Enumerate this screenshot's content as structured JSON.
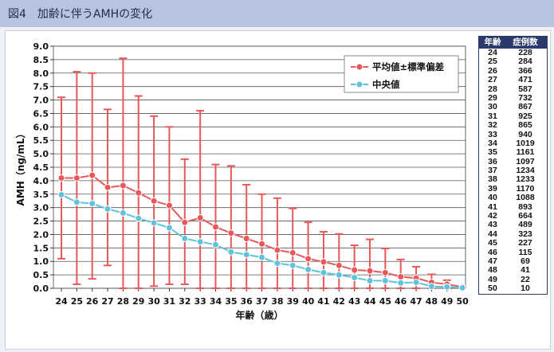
{
  "header": {
    "title": "図4　加齢に伴うAMHの変化"
  },
  "chart_data": {
    "type": "line",
    "ylabel": "AMH（ng/mL）",
    "xlabel": "年齢（歳）",
    "ylim": [
      0,
      9
    ],
    "yticks": [
      "0.0",
      "0.5",
      "1.0",
      "1.5",
      "2.0",
      "2.5",
      "3.0",
      "3.5",
      "4.0",
      "4.5",
      "5.0",
      "5.5",
      "6.0",
      "6.5",
      "7.0",
      "7.5",
      "8.0",
      "8.5",
      "9.0"
    ],
    "grid": true,
    "legend_position": "top-right",
    "categories": [
      "24",
      "25",
      "26",
      "27",
      "28",
      "29",
      "30",
      "31",
      "32",
      "33",
      "34",
      "35",
      "36",
      "37",
      "38",
      "39",
      "40",
      "41",
      "42",
      "43",
      "44",
      "45",
      "46",
      "47",
      "48",
      "49",
      "50"
    ],
    "series": [
      {
        "name": "平均値±標準偏差",
        "color": "#e8585a",
        "values": [
          4.1,
          4.1,
          4.2,
          3.75,
          3.82,
          3.55,
          3.25,
          3.08,
          2.45,
          2.62,
          2.28,
          2.05,
          1.85,
          1.65,
          1.42,
          1.32,
          1.1,
          0.98,
          0.85,
          0.68,
          0.65,
          0.58,
          0.43,
          0.38,
          0.22,
          0.15,
          0.05
        ],
        "error_upper": [
          7.1,
          8.05,
          8.0,
          6.65,
          8.55,
          7.15,
          6.4,
          6.0,
          4.8,
          6.6,
          4.6,
          4.55,
          3.85,
          3.5,
          3.35,
          2.97,
          2.45,
          2.1,
          2.02,
          1.6,
          1.82,
          1.48,
          1.07,
          0.8,
          0.52,
          0.3,
          0.05
        ],
        "error_lower": [
          1.1,
          0.15,
          0.35,
          0.85,
          0.0,
          0.0,
          0.08,
          0.15,
          0.15,
          0.0,
          0.0,
          0.0,
          0.0,
          0.0,
          0.0,
          0.0,
          0.0,
          0.0,
          0.0,
          0.0,
          0.0,
          0.0,
          0.0,
          0.0,
          0.0,
          0.0,
          0.05
        ]
      },
      {
        "name": "中央値",
        "color": "#5fc3dc",
        "values": [
          3.48,
          3.2,
          3.15,
          2.95,
          2.8,
          2.6,
          2.43,
          2.25,
          1.85,
          1.73,
          1.62,
          1.35,
          1.25,
          1.15,
          0.93,
          0.85,
          0.7,
          0.58,
          0.5,
          0.4,
          0.28,
          0.28,
          0.2,
          0.22,
          0.07,
          0.05,
          0.02
        ]
      }
    ]
  },
  "table": {
    "header_age": "年齢",
    "header_count": "症例数",
    "rows": [
      {
        "age": "24",
        "n": "228"
      },
      {
        "age": "25",
        "n": "284"
      },
      {
        "age": "26",
        "n": "366"
      },
      {
        "age": "27",
        "n": "471"
      },
      {
        "age": "28",
        "n": "587"
      },
      {
        "age": "29",
        "n": "732"
      },
      {
        "age": "30",
        "n": "867"
      },
      {
        "age": "31",
        "n": "925"
      },
      {
        "age": "32",
        "n": "865"
      },
      {
        "age": "33",
        "n": "940"
      },
      {
        "age": "34",
        "n": "1019"
      },
      {
        "age": "35",
        "n": "1161"
      },
      {
        "age": "36",
        "n": "1097"
      },
      {
        "age": "37",
        "n": "1234"
      },
      {
        "age": "38",
        "n": "1233"
      },
      {
        "age": "39",
        "n": "1170"
      },
      {
        "age": "40",
        "n": "1088"
      },
      {
        "age": "41",
        "n": "893"
      },
      {
        "age": "42",
        "n": "664"
      },
      {
        "age": "43",
        "n": "489"
      },
      {
        "age": "44",
        "n": "323"
      },
      {
        "age": "45",
        "n": "227"
      },
      {
        "age": "46",
        "n": "115"
      },
      {
        "age": "47",
        "n": "69"
      },
      {
        "age": "48",
        "n": "41"
      },
      {
        "age": "49",
        "n": "22"
      },
      {
        "age": "50",
        "n": "10"
      }
    ]
  }
}
